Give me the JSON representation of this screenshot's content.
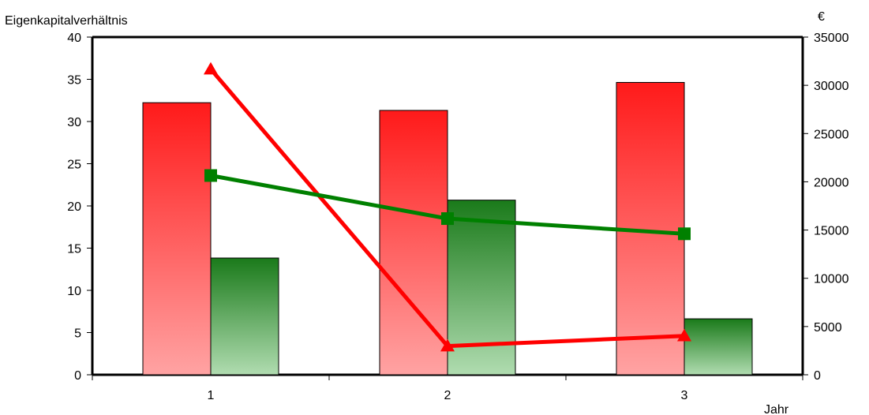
{
  "chart_data": {
    "type": "bar",
    "categories": [
      "1",
      "2",
      "3"
    ],
    "left_axis": {
      "label": "Eigenkapitalverhältnis",
      "ylim": [
        0,
        40
      ],
      "ticks": [
        "0",
        "5",
        "10",
        "15",
        "20",
        "25",
        "30",
        "35",
        "40"
      ]
    },
    "right_axis": {
      "label": "€",
      "ylim": [
        0,
        35000
      ],
      "ticks": [
        "0",
        "5000",
        "10000",
        "15000",
        "20000",
        "25000",
        "30000",
        "35000"
      ]
    },
    "xlabel": "Jahr",
    "series": [
      {
        "kind": "bar",
        "axis": "right",
        "color": "#ff1a1a",
        "values": [
          28200,
          27400,
          30300
        ]
      },
      {
        "kind": "bar",
        "axis": "right",
        "color": "#1a7a1a",
        "values": [
          12100,
          18100,
          5800
        ]
      },
      {
        "kind": "line",
        "axis": "left",
        "marker": "triangle",
        "color": "#ff0000",
        "values": [
          36.2,
          3.4,
          4.6
        ]
      },
      {
        "kind": "line",
        "axis": "left",
        "marker": "square",
        "color": "#008000",
        "values": [
          23.6,
          18.5,
          16.7
        ]
      }
    ],
    "grid": false,
    "legend": "none"
  }
}
